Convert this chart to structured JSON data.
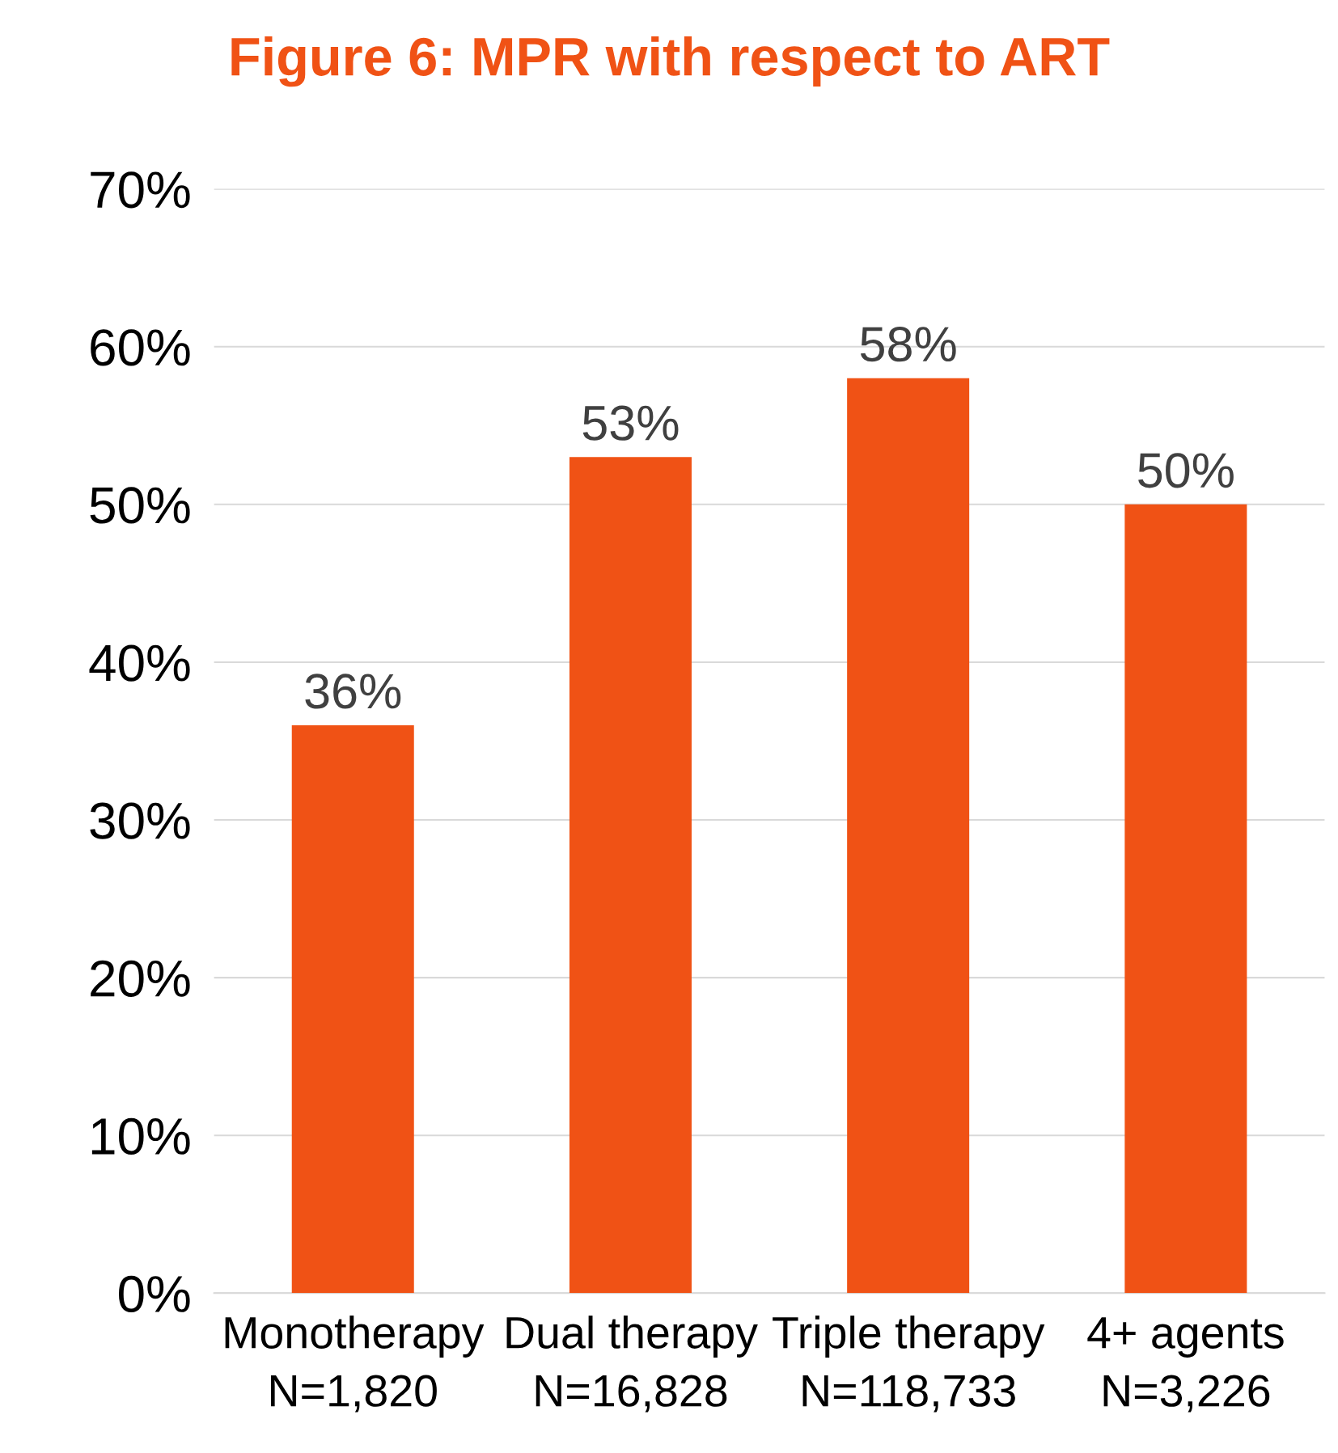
{
  "chart_data": {
    "type": "bar",
    "title": "Figure 6: MPR with respect to ART",
    "categories": [
      "Monotherapy\nN=1,820",
      "Dual therapy\nN=16,828",
      "Triple therapy\nN=118,733",
      "4+ agents\nN=3,226"
    ],
    "values": [
      36,
      53,
      58,
      50
    ],
    "color": "#f05215",
    "value_labels": [
      "36%",
      "53%",
      "58%",
      "50%"
    ],
    "ylim": [
      0,
      70
    ],
    "yticks": [
      {
        "value": 0,
        "label": "0%"
      },
      {
        "value": 10,
        "label": "10%"
      },
      {
        "value": 20,
        "label": "20%"
      },
      {
        "value": 30,
        "label": "30%"
      },
      {
        "value": 40,
        "label": "40%"
      },
      {
        "value": 50,
        "label": "50%"
      },
      {
        "value": 60,
        "label": "60%"
      },
      {
        "value": 70,
        "label": "70%"
      }
    ],
    "grid": "y",
    "legend": false
  }
}
